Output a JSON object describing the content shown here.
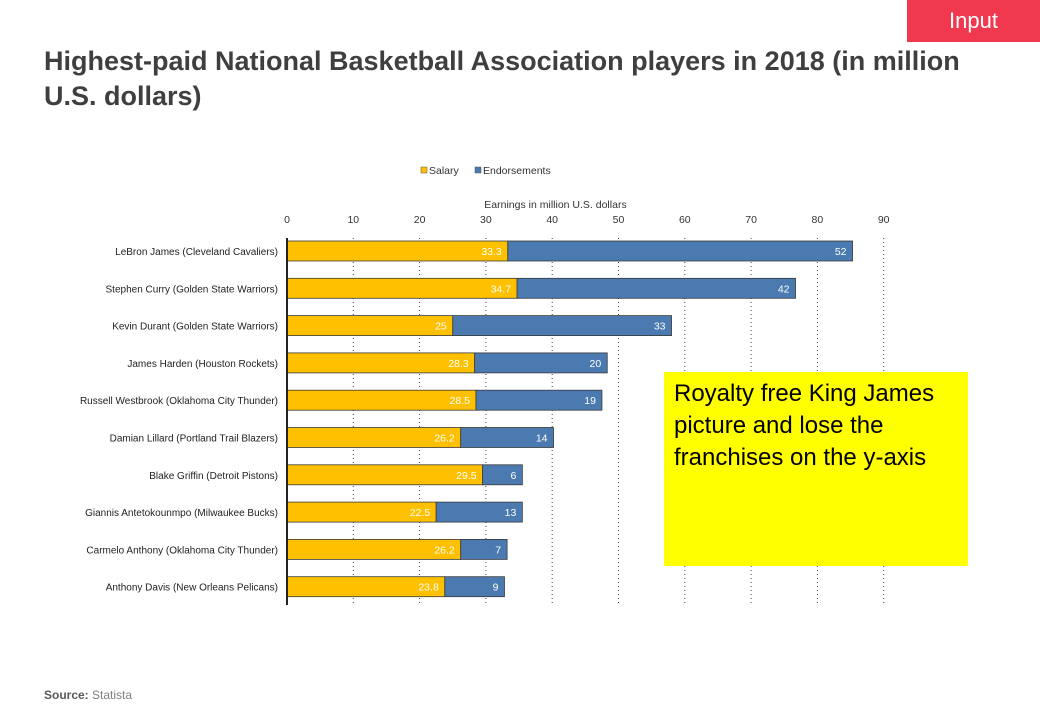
{
  "badge": "Input",
  "title": "Highest-paid National Basketball Association players in 2018 (in million U.S. dollars)",
  "note": "Royalty free King James picture and lose the franchises on the y-axis",
  "source": {
    "label": "Source:",
    "value": "Statista"
  },
  "colors": {
    "salary": "#ffc000",
    "endorsements": "#4a7ab0",
    "note_bg": "#ffff00",
    "badge_bg": "#f0384f"
  },
  "chart_data": {
    "type": "bar",
    "orientation": "horizontal",
    "stacked": true,
    "title": "Highest-paid National Basketball Association players in 2018 (in million U.S. dollars)",
    "xlabel": "Earnings in million  U.S. dollars",
    "ylabel": "",
    "xlim": [
      0,
      90
    ],
    "xticks": [
      0,
      10,
      20,
      30,
      40,
      50,
      60,
      70,
      80,
      90
    ],
    "legend_position": "top",
    "categories": [
      "LeBron James (Cleveland Cavaliers)",
      "Stephen Curry (Golden State Warriors)",
      "Kevin Durant (Golden State Warriors)",
      "James Harden (Houston Rockets)",
      "Russell Westbrook (Oklahoma City Thunder)",
      "Damian Lillard (Portland Trail Blazers)",
      "Blake Griffin (Detroit Pistons)",
      "Giannis Antetokounmpo (Milwaukee Bucks)",
      "Carmelo Anthony (Oklahoma City Thunder)",
      "Anthony Davis (New Orleans Pelicans)"
    ],
    "series": [
      {
        "name": "Salary",
        "values": [
          33.3,
          34.7,
          25,
          28.3,
          28.5,
          26.2,
          29.5,
          22.5,
          26.2,
          23.8
        ]
      },
      {
        "name": "Endorsements",
        "values": [
          52,
          42,
          33,
          20,
          19,
          14,
          6,
          13,
          7,
          9
        ]
      }
    ]
  }
}
